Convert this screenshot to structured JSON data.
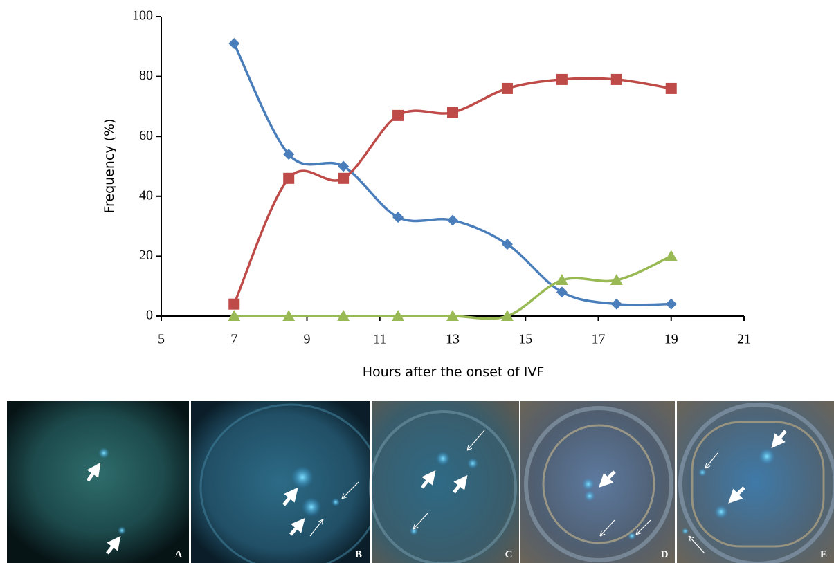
{
  "chart_data": {
    "type": "line",
    "x_label": "Hours after the onset of IVF",
    "y_label": "Frequency (%)",
    "x": [
      7,
      8.5,
      10,
      11.5,
      13,
      14.5,
      16,
      17.5,
      19
    ],
    "series": [
      {
        "color": "#4a7ebb",
        "marker": "diamond",
        "values": [
          91,
          54,
          50,
          33,
          32,
          24,
          8,
          4,
          4
        ]
      },
      {
        "color": "#be4b48",
        "marker": "square",
        "values": [
          4,
          46,
          46,
          67,
          68,
          76,
          79,
          79,
          76
        ]
      },
      {
        "color": "#98b954",
        "marker": "triangle",
        "values": [
          0,
          0,
          0,
          0,
          0,
          0,
          12,
          12,
          20
        ]
      }
    ],
    "smooth": true,
    "xlim": [
      5,
      21
    ],
    "xticks": [
      5,
      7,
      9,
      11,
      13,
      15,
      17,
      19,
      21
    ],
    "ylim": [
      0,
      100
    ],
    "yticks": [
      0,
      20,
      40,
      60,
      80,
      100
    ]
  },
  "panels": [
    {
      "label": "A"
    },
    {
      "label": "B"
    },
    {
      "label": "C"
    },
    {
      "label": "D"
    },
    {
      "label": "E"
    }
  ]
}
